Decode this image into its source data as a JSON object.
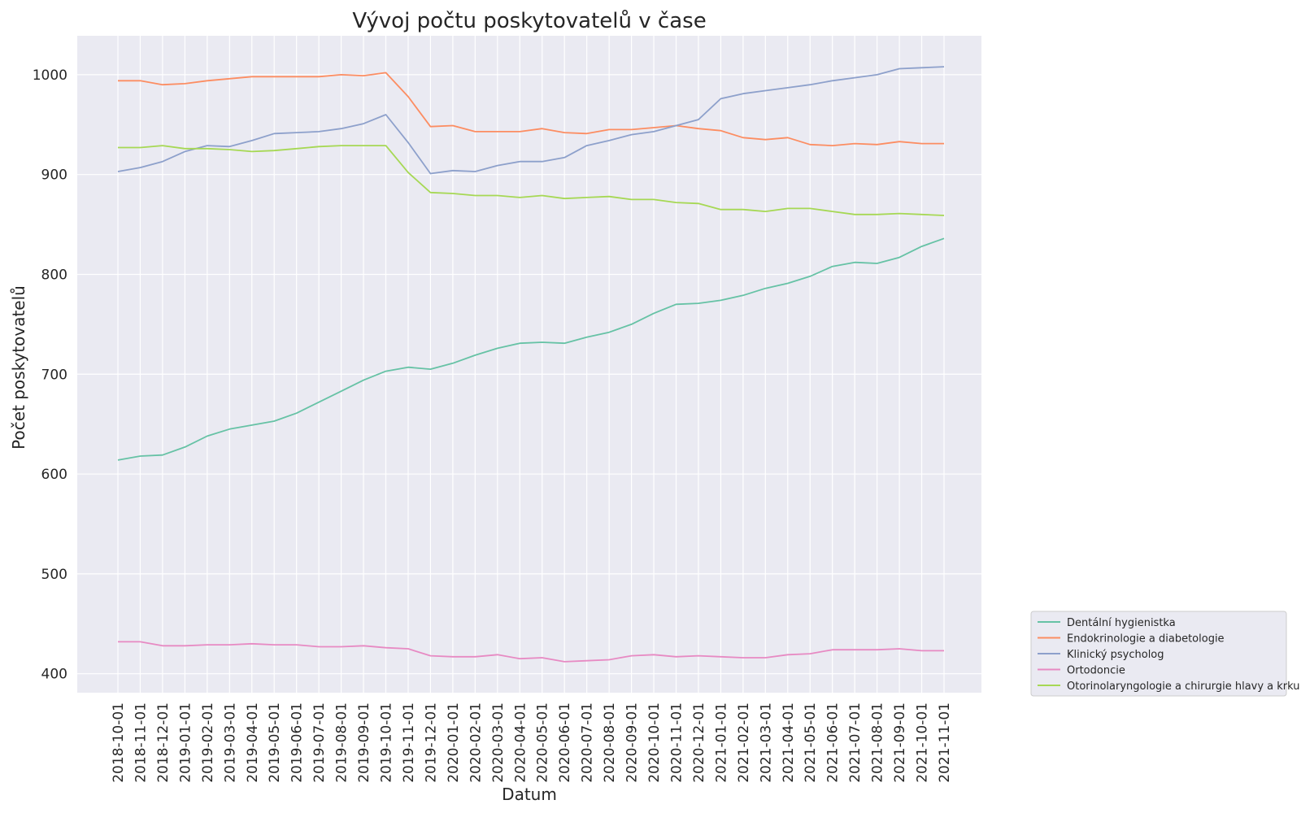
{
  "chart_data": {
    "type": "line",
    "title": "Vývoj počtu poskytovatelů v čase",
    "xlabel": "Datum",
    "ylabel": "Počet poskytovatelů",
    "ylim": [
      381,
      1039
    ],
    "yticks": [
      400,
      500,
      600,
      700,
      800,
      900,
      1000
    ],
    "grid": true,
    "legend_position": "lower-right-outside",
    "x": [
      "2018-10-01",
      "2018-11-01",
      "2018-12-01",
      "2019-01-01",
      "2019-02-01",
      "2019-03-01",
      "2019-04-01",
      "2019-05-01",
      "2019-06-01",
      "2019-07-01",
      "2019-08-01",
      "2019-09-01",
      "2019-10-01",
      "2019-11-01",
      "2019-12-01",
      "2020-01-01",
      "2020-02-01",
      "2020-03-01",
      "2020-04-01",
      "2020-05-01",
      "2020-06-01",
      "2020-07-01",
      "2020-08-01",
      "2020-09-01",
      "2020-10-01",
      "2020-11-01",
      "2020-12-01",
      "2021-01-01",
      "2021-02-01",
      "2021-03-01",
      "2021-04-01",
      "2021-05-01",
      "2021-06-01",
      "2021-07-01",
      "2021-08-01",
      "2021-09-01",
      "2021-10-01",
      "2021-11-01"
    ],
    "series": [
      {
        "name": "Dentální hygienistka",
        "color": "#66c2a5",
        "values": [
          614,
          618,
          619,
          627,
          638,
          645,
          649,
          653,
          661,
          672,
          683,
          694,
          703,
          707,
          705,
          711,
          719,
          726,
          731,
          732,
          731,
          737,
          742,
          750,
          761,
          770,
          771,
          774,
          779,
          786,
          791,
          798,
          808,
          812,
          811,
          817,
          828,
          836
        ]
      },
      {
        "name": "Endokrinologie a diabetologie",
        "color": "#fc8d62",
        "values": [
          994,
          994,
          990,
          991,
          994,
          996,
          998,
          998,
          998,
          998,
          1000,
          999,
          1002,
          978,
          948,
          949,
          943,
          943,
          943,
          946,
          942,
          941,
          945,
          945,
          947,
          949,
          946,
          944,
          937,
          935,
          937,
          930,
          929,
          931,
          930,
          933,
          931,
          931
        ]
      },
      {
        "name": "Klinický psycholog",
        "color": "#8da0cb",
        "values": [
          903,
          907,
          913,
          923,
          929,
          928,
          934,
          941,
          942,
          943,
          946,
          951,
          960,
          932,
          901,
          904,
          903,
          909,
          913,
          913,
          917,
          929,
          934,
          940,
          943,
          949,
          955,
          976,
          981,
          984,
          987,
          990,
          994,
          997,
          1000,
          1006,
          1007,
          1008
        ]
      },
      {
        "name": "Ortodoncie",
        "color": "#e78ac3",
        "values": [
          432,
          432,
          428,
          428,
          429,
          429,
          430,
          429,
          429,
          427,
          427,
          428,
          426,
          425,
          418,
          417,
          417,
          419,
          415,
          416,
          412,
          413,
          414,
          418,
          419,
          417,
          418,
          417,
          416,
          416,
          419,
          420,
          424,
          424,
          424,
          425,
          423,
          423
        ]
      },
      {
        "name": "Otorinolaryngologie a chirurgie hlavy a krku",
        "color": "#a6d854",
        "values": [
          927,
          927,
          929,
          926,
          926,
          925,
          923,
          924,
          926,
          928,
          929,
          929,
          929,
          902,
          882,
          881,
          879,
          879,
          877,
          879,
          876,
          877,
          878,
          875,
          875,
          872,
          871,
          865,
          865,
          863,
          866,
          866,
          863,
          860,
          860,
          861,
          860,
          859
        ]
      }
    ]
  }
}
